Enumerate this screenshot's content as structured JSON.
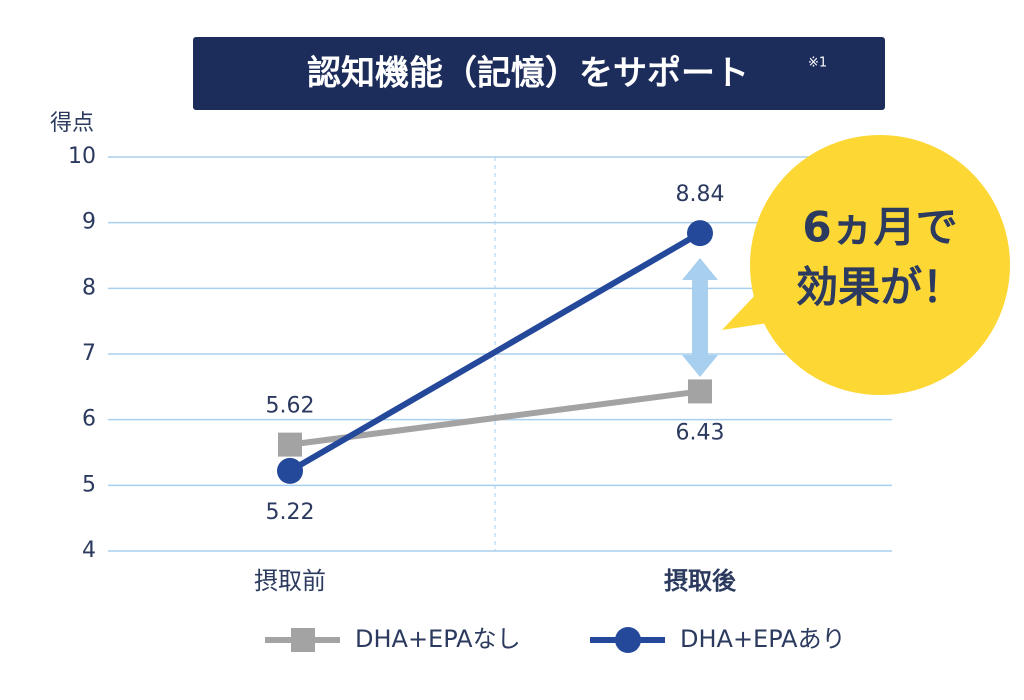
{
  "chart_data": {
    "type": "line",
    "title": "認知機能（記憶）をサポート",
    "title_note": "※1",
    "y_label": "得点",
    "categories": [
      "摂取前",
      "摂取後"
    ],
    "series": [
      {
        "name": "DHA+EPAなし",
        "color": "#a3a3a3",
        "marker": "square",
        "values": [
          5.62,
          6.43
        ]
      },
      {
        "name": "DHA+EPAあり",
        "color": "#24489a",
        "marker": "circle",
        "values": [
          5.22,
          8.84
        ]
      }
    ],
    "ylim": [
      4,
      10
    ],
    "yticks": [
      4,
      5,
      6,
      7,
      8,
      9,
      10
    ],
    "grid": true,
    "annotation": [
      "6ヵ月で",
      "効果が！"
    ]
  }
}
